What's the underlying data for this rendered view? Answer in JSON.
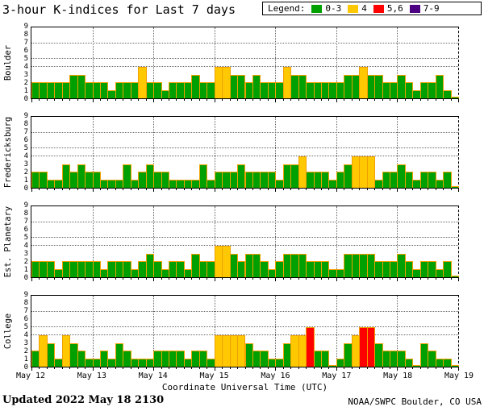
{
  "title": "3-hour K-indices for Last 7 days",
  "legend": {
    "label": "Legend:",
    "items": [
      {
        "label": "0-3",
        "color": "#00a000"
      },
      {
        "label": "4",
        "color": "#ffc800"
      },
      {
        "label": "5,6",
        "color": "#ff0000"
      },
      {
        "label": "7-9",
        "color": "#4b0082"
      }
    ]
  },
  "x_tick_labels": [
    "May 12",
    "May 13",
    "May 14",
    "May 15",
    "May 16",
    "May 17",
    "May 18",
    "May 19"
  ],
  "xlabel": "Coordinate Universal Time (UTC)",
  "footer": {
    "updated": "Updated 2022 May 18 2130",
    "source": "NOAA/SWPC Boulder, CO USA"
  },
  "chart_data": {
    "type": "bar",
    "title": "3-hour K-indices for Last 7 days",
    "xlabel": "Coordinate Universal Time (UTC)",
    "ylim": [
      0,
      9
    ],
    "y_ticks": [
      9,
      8,
      7,
      6,
      5,
      4,
      3,
      2,
      1,
      0
    ],
    "threshold_gridlines": [
      4,
      5,
      7
    ],
    "bars_per_day": 8,
    "days": [
      "May 12",
      "May 13",
      "May 14",
      "May 15",
      "May 16",
      "May 17",
      "May 18"
    ],
    "color_map": {
      "0-3": "#00a000",
      "4": "#ffc800",
      "5-6": "#ff0000",
      "7-9": "#4b0082"
    },
    "bar_outline_color": "#f0a000",
    "stations": [
      {
        "name": "Boulder",
        "k_values": [
          2,
          2,
          2,
          2,
          2,
          3,
          3,
          2,
          2,
          2,
          1,
          2,
          2,
          2,
          4,
          2,
          2,
          1,
          2,
          2,
          2,
          3,
          2,
          2,
          4,
          4,
          3,
          3,
          2,
          3,
          2,
          2,
          2,
          4,
          3,
          3,
          2,
          2,
          2,
          2,
          2,
          3,
          3,
          4,
          3,
          3,
          2,
          2,
          3,
          2,
          1,
          2,
          2,
          3,
          1,
          0
        ]
      },
      {
        "name": "Fredericksburg",
        "k_values": [
          2,
          2,
          1,
          1,
          3,
          2,
          3,
          2,
          2,
          1,
          1,
          1,
          3,
          1,
          2,
          3,
          2,
          2,
          1,
          1,
          1,
          1,
          3,
          1,
          2,
          2,
          2,
          3,
          2,
          2,
          2,
          2,
          1,
          3,
          3,
          4,
          2,
          2,
          2,
          1,
          2,
          3,
          4,
          4,
          4,
          1,
          2,
          2,
          3,
          2,
          1,
          2,
          2,
          1,
          2,
          0
        ]
      },
      {
        "name": "Est. Planetary",
        "k_values": [
          2,
          2,
          2,
          1,
          2,
          2,
          2,
          2,
          2,
          1,
          2,
          2,
          2,
          1,
          2,
          3,
          2,
          1,
          2,
          2,
          1,
          3,
          2,
          2,
          4,
          4,
          3,
          2,
          3,
          3,
          2,
          1,
          2,
          3,
          3,
          3,
          2,
          2,
          2,
          1,
          1,
          3,
          3,
          3,
          3,
          2,
          2,
          2,
          3,
          2,
          1,
          2,
          2,
          1,
          2,
          0
        ]
      },
      {
        "name": "College",
        "k_values": [
          2,
          4,
          3,
          1,
          4,
          3,
          2,
          1,
          1,
          2,
          1,
          3,
          2,
          1,
          1,
          1,
          2,
          2,
          2,
          2,
          1,
          2,
          2,
          1,
          4,
          4,
          4,
          4,
          3,
          2,
          2,
          1,
          1,
          3,
          4,
          4,
          5,
          2,
          2,
          0,
          1,
          3,
          4,
          5,
          5,
          3,
          2,
          2,
          2,
          1,
          0,
          3,
          2,
          1,
          1,
          0
        ]
      }
    ]
  }
}
